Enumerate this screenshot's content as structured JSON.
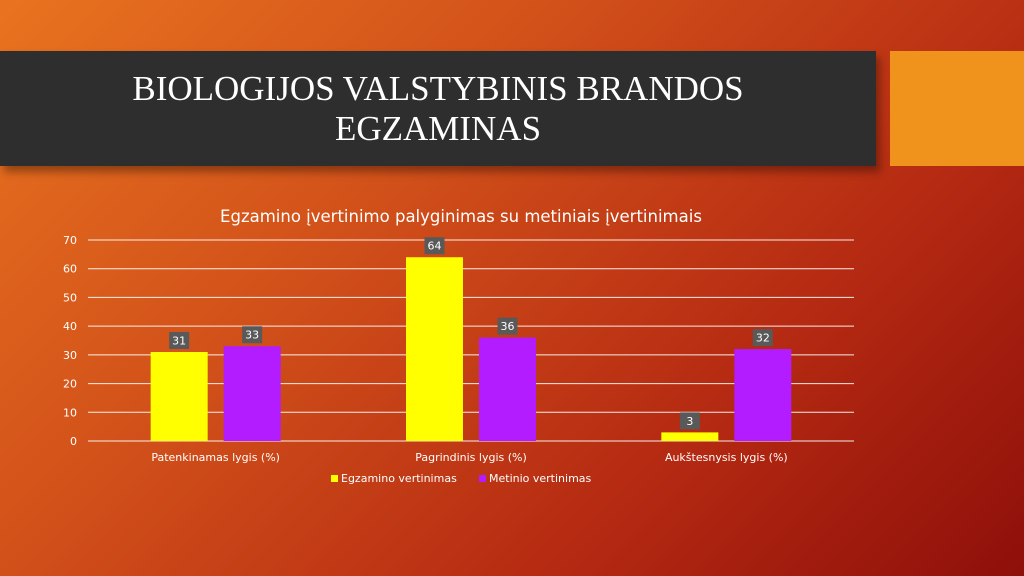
{
  "slide": {
    "title": "BIOLOGIJOS VALSTYBINIS BRANDOS EGZAMINAS"
  },
  "colors": {
    "title_bar": "#2e2e2e",
    "accent_box": "#f0931c",
    "series_1": "#ffff00",
    "series_2": "#b31cff",
    "label_box": "#595959"
  },
  "chart_data": {
    "type": "bar",
    "title": "Egzamino įvertinimo palyginimas su metiniais įvertinimais",
    "categories": [
      "Patenkinamas lygis (%)",
      "Pagrindinis lygis  (%)",
      "Aukštesnysis lygis  (%)"
    ],
    "series": [
      {
        "name": "Egzamino vertinimas",
        "values": [
          31,
          64,
          3
        ]
      },
      {
        "name": "Metinio vertinimas",
        "values": [
          33,
          36,
          32
        ]
      }
    ],
    "ylim": [
      0,
      70
    ],
    "yticks": [
      0,
      10,
      20,
      30,
      40,
      50,
      60,
      70
    ],
    "grid": true,
    "legend": "bottom",
    "data_labels": true
  }
}
